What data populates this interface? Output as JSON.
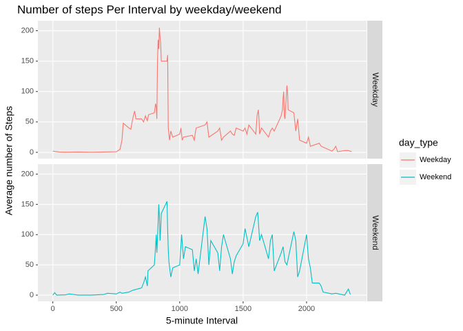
{
  "chart_data": {
    "type": "line",
    "title": "Number of steps Per Interval by weekday/weekend",
    "x_label": "5-minute Interval",
    "y_label": "Average number of Steps",
    "legend_title": "day_type",
    "xlim": [
      -117.75,
      2472.75
    ],
    "xticks": [
      0,
      500,
      1000,
      1500,
      2000
    ],
    "ylim": [
      -10.3,
      216.5
    ],
    "yticks": [
      0,
      50,
      100,
      150,
      200
    ],
    "grid": true,
    "series": [
      {
        "name": "Weekday",
        "color": "#f8766d",
        "x": [
          0,
          50,
          100,
          200,
          300,
          400,
          500,
          530,
          545,
          555,
          600,
          615,
          625,
          635,
          645,
          655,
          700,
          715,
          730,
          745,
          755,
          800,
          810,
          815,
          820,
          825,
          830,
          835,
          840,
          845,
          850,
          855,
          900,
          905,
          910,
          915,
          920,
          930,
          945,
          1000,
          1010,
          1020,
          1030,
          1100,
          1115,
          1125,
          1130,
          1200,
          1215,
          1230,
          1300,
          1315,
          1330,
          1345,
          1400,
          1415,
          1430,
          1445,
          1500,
          1515,
          1530,
          1545,
          1600,
          1610,
          1620,
          1625,
          1630,
          1645,
          1700,
          1715,
          1730,
          1745,
          1800,
          1810,
          1815,
          1820,
          1825,
          1830,
          1845,
          1850,
          1855,
          1900,
          1915,
          1930,
          1945,
          2000,
          2015,
          2030,
          2100,
          2115,
          2200,
          2215,
          2230,
          2245,
          2300,
          2330,
          2355
        ],
        "values": [
          2,
          0.5,
          0.3,
          0.5,
          0.2,
          0.5,
          1,
          5,
          20,
          48,
          40,
          38,
          50,
          60,
          68,
          55,
          55,
          50,
          60,
          52,
          62,
          65,
          80,
          75,
          55,
          150,
          185,
          170,
          205,
          190,
          180,
          150,
          150,
          160,
          40,
          30,
          20,
          35,
          25,
          30,
          40,
          20,
          25,
          28,
          20,
          35,
          40,
          45,
          50,
          25,
          35,
          40,
          20,
          25,
          35,
          30,
          28,
          40,
          35,
          40,
          30,
          45,
          30,
          60,
          70,
          55,
          30,
          40,
          25,
          35,
          40,
          35,
          60,
          70,
          90,
          100,
          60,
          55,
          110,
          100,
          70,
          65,
          35,
          55,
          20,
          15,
          25,
          10,
          15,
          10,
          2,
          5,
          10,
          1,
          3,
          3,
          1
        ]
      },
      {
        "name": "Weekend",
        "color": "#00bfc4",
        "x": [
          0,
          15,
          30,
          100,
          130,
          200,
          300,
          400,
          430,
          500,
          530,
          545,
          600,
          630,
          700,
          715,
          730,
          745,
          750,
          800,
          810,
          815,
          820,
          830,
          835,
          840,
          845,
          850,
          855,
          900,
          905,
          910,
          915,
          930,
          945,
          1000,
          1015,
          1030,
          1045,
          1100,
          1115,
          1130,
          1145,
          1200,
          1215,
          1230,
          1245,
          1300,
          1315,
          1330,
          1345,
          1400,
          1415,
          1430,
          1445,
          1500,
          1515,
          1530,
          1545,
          1600,
          1615,
          1630,
          1645,
          1700,
          1715,
          1730,
          1745,
          1800,
          1815,
          1830,
          1845,
          1900,
          1915,
          1930,
          1945,
          2000,
          2015,
          2030,
          2045,
          2100,
          2115,
          2130,
          2200,
          2230,
          2300,
          2330,
          2345
        ],
        "values": [
          0,
          4,
          0,
          0.5,
          2,
          0,
          0,
          1,
          3,
          2,
          5,
          3,
          5,
          8,
          12,
          20,
          30,
          15,
          40,
          50,
          80,
          100,
          70,
          120,
          150,
          130,
          90,
          110,
          135,
          155,
          110,
          75,
          55,
          30,
          45,
          50,
          100,
          60,
          80,
          75,
          40,
          60,
          35,
          130,
          110,
          50,
          90,
          70,
          40,
          80,
          100,
          60,
          35,
          55,
          65,
          85,
          110,
          95,
          80,
          130,
          137,
          90,
          100,
          60,
          90,
          100,
          40,
          70,
          80,
          55,
          50,
          105,
          90,
          30,
          40,
          100,
          60,
          45,
          20,
          20,
          15,
          5,
          2,
          3,
          0,
          10,
          1
        ]
      }
    ]
  }
}
